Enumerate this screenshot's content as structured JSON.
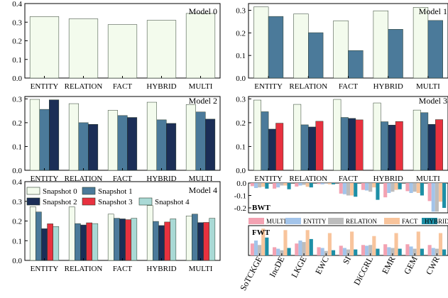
{
  "colors": {
    "snapshot_0": "#f3fbed",
    "snapshot_1": "#4b7a9a",
    "snapshot_2": "#1b2e57",
    "snapshot_3": "#e8313f",
    "snapshot_4": "#a9d9d5",
    "bwt_fwt": {
      "MULTI": "#f3a2b2",
      "ENTITY": "#a3c4ea",
      "RELATION": "#bcbcbc",
      "FACT": "#f8c49c",
      "HYBRID": "#1d8fa6"
    }
  },
  "chart_data": [
    {
      "type": "bar",
      "title": "Model 0",
      "categories": [
        "ENTITY",
        "RELATION",
        "FACT",
        "HYBRID",
        "MULTI"
      ],
      "ylim": [
        0,
        0.4
      ],
      "yticks": [
        "0.0",
        "0.1",
        "0.2",
        "0.3",
        "0.4"
      ],
      "series": [
        {
          "name": "Snapshot 0",
          "values": [
            0.33,
            0.318,
            0.287,
            0.31,
            0.347
          ]
        }
      ]
    },
    {
      "type": "bar",
      "title": "Model 1",
      "categories": [
        "ENTITY",
        "RELATION",
        "FACT",
        "HYBRID",
        "MULTI"
      ],
      "ylim": [
        0,
        0.33
      ],
      "yticks": [
        "0.0",
        "0.1",
        "0.2",
        "0.3"
      ],
      "series": [
        {
          "name": "Snapshot 0",
          "values": [
            0.315,
            0.284,
            0.254,
            0.298,
            0.313
          ]
        },
        {
          "name": "Snapshot 1",
          "values": [
            0.273,
            0.201,
            0.122,
            0.216,
            0.255
          ]
        }
      ]
    },
    {
      "type": "bar",
      "title": "Model 2",
      "categories": [
        "ENTITY",
        "RELATION",
        "FACT",
        "HYBRID",
        "MULTI"
      ],
      "ylim": [
        0,
        0.31
      ],
      "yticks": [
        "0.0",
        "0.1",
        "0.2",
        "0.3"
      ],
      "series": [
        {
          "name": "Snapshot 0",
          "values": [
            0.298,
            0.28,
            0.252,
            0.286,
            0.276
          ]
        },
        {
          "name": "Snapshot 1",
          "values": [
            0.256,
            0.2,
            0.23,
            0.212,
            0.245
          ]
        },
        {
          "name": "Snapshot 2",
          "values": [
            0.296,
            0.193,
            0.222,
            0.197,
            0.215
          ]
        }
      ]
    },
    {
      "type": "bar",
      "title": "Model 3",
      "categories": [
        "ENTITY",
        "RELATION",
        "FACT",
        "HYBRID",
        "MULTI"
      ],
      "ylim": [
        0,
        0.31
      ],
      "yticks": [
        "0.0",
        "0.1",
        "0.2",
        "0.3"
      ],
      "series": [
        {
          "name": "Snapshot 0",
          "values": [
            0.295,
            0.277,
            0.298,
            0.283,
            0.253
          ]
        },
        {
          "name": "Snapshot 1",
          "values": [
            0.246,
            0.191,
            0.222,
            0.204,
            0.242
          ]
        },
        {
          "name": "Snapshot 2",
          "values": [
            0.173,
            0.182,
            0.218,
            0.19,
            0.193
          ]
        },
        {
          "name": "Snapshot 3",
          "values": [
            0.198,
            0.206,
            0.212,
            0.205,
            0.213
          ]
        }
      ]
    },
    {
      "type": "bar",
      "title": "Model 4",
      "categories": [
        "ENTITY",
        "RELATION",
        "FACT",
        "HYBRID",
        "MULTI"
      ],
      "ylim": [
        0,
        0.4
      ],
      "yticks": [
        "0.0",
        "0.1",
        "0.2",
        "0.3",
        "0.4"
      ],
      "legend": [
        "Snapshot 0",
        "Snapshot 1",
        "Snapshot 2",
        "Snapshot 3",
        "Snapshot 4"
      ],
      "series": [
        {
          "name": "Snapshot 0",
          "values": [
            0.273,
            0.272,
            0.235,
            0.279,
            0.226
          ]
        },
        {
          "name": "Snapshot 1",
          "values": [
            0.246,
            0.187,
            0.214,
            0.198,
            0.235
          ]
        },
        {
          "name": "Snapshot 2",
          "values": [
            0.161,
            0.18,
            0.211,
            0.177,
            0.192
          ]
        },
        {
          "name": "Snapshot 3",
          "values": [
            0.186,
            0.191,
            0.207,
            0.195,
            0.193
          ]
        },
        {
          "name": "Snapshot 4",
          "values": [
            0.172,
            0.187,
            0.214,
            0.211,
            0.214
          ]
        }
      ]
    },
    {
      "type": "bar",
      "title": "",
      "categories": [
        "SoTCKGE",
        "IncDE",
        "LKGE",
        "EWC",
        "SI",
        "DiCGRL",
        "EMR",
        "GEM",
        "CWR"
      ],
      "legend": [
        "MULTI",
        "ENTITY",
        "RELATION",
        "FACT",
        "HYBRID"
      ],
      "bwt": {
        "label": "BWT",
        "ylim": [
          -0.24,
          0.0
        ],
        "yticks": [
          "0.0",
          "-0.1",
          "-0.2"
        ],
        "series": [
          {
            "name": "MULTI",
            "values": [
              -0.025,
              -0.045,
              -0.028,
              -0.008,
              -0.085,
              -0.055,
              -0.115,
              -0.065,
              -0.145
            ]
          },
          {
            "name": "ENTITY",
            "values": [
              -0.04,
              -0.035,
              -0.02,
              -0.01,
              -0.09,
              -0.06,
              -0.08,
              -0.08,
              -0.23
            ]
          },
          {
            "name": "RELATION",
            "values": [
              -0.035,
              -0.02,
              -0.015,
              -0.005,
              -0.1,
              -0.07,
              -0.07,
              -0.07,
              -0.23
            ]
          },
          {
            "name": "FACT",
            "values": [
              -0.03,
              -0.02,
              -0.03,
              -0.01,
              -0.1,
              -0.035,
              -0.055,
              -0.08,
              -0.15
            ]
          },
          {
            "name": "HYBRID",
            "values": [
              -0.045,
              -0.05,
              -0.035,
              -0.01,
              -0.11,
              -0.135,
              -0.05,
              -0.1,
              -0.2
            ]
          }
        ]
      },
      "fwt": {
        "label": "FWT",
        "ylim": [
          0,
          0.2
        ],
        "series": [
          {
            "name": "MULTI",
            "values": [
              0.08,
              0.055,
              0.08,
              0.055,
              0.065,
              0.07,
              0.075,
              0.075,
              0.07
            ]
          },
          {
            "name": "ENTITY",
            "values": [
              0.1,
              0.045,
              0.1,
              0.05,
              0.05,
              0.065,
              0.055,
              0.06,
              0.05
            ]
          },
          {
            "name": "RELATION",
            "values": [
              0.07,
              0.035,
              0.09,
              0.03,
              0.04,
              0.07,
              0.05,
              0.045,
              0.045
            ]
          },
          {
            "name": "FACT",
            "values": [
              0.18,
              0.17,
              0.17,
              0.15,
              0.16,
              0.13,
              0.15,
              0.16,
              0.15
            ]
          },
          {
            "name": "HYBRID",
            "values": [
              0.12,
              0.05,
              0.11,
              0.035,
              0.04,
              0.045,
              0.045,
              0.045,
              0.04
            ]
          }
        ]
      }
    }
  ]
}
